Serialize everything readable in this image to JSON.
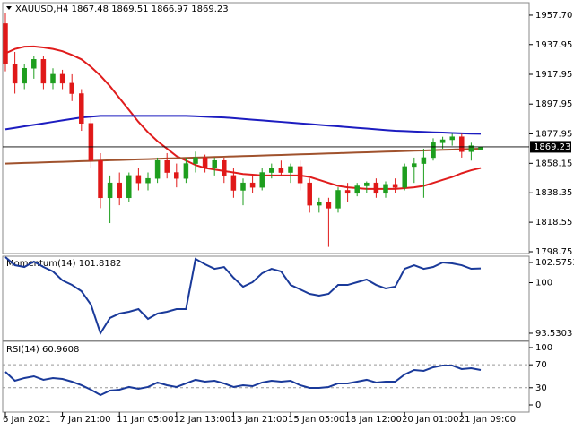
{
  "chart_data": [
    {
      "type": "candlestick",
      "title": "XAUUSD,H4",
      "open": [
        1952,
        1925,
        1912,
        1922,
        1928,
        1912,
        1918,
        1912,
        1905,
        1885,
        1860,
        1835,
        1845,
        1835,
        1850,
        1845,
        1848,
        1860,
        1852,
        1848,
        1858,
        1862,
        1855,
        1860,
        1850,
        1840,
        1845,
        1842,
        1852,
        1855,
        1852,
        1856,
        1845,
        1830,
        1832,
        1828,
        1840,
        1838,
        1843,
        1845,
        1838,
        1844,
        1842,
        1856,
        1858,
        1862,
        1872,
        1874,
        1876,
        1866,
        1867.48
      ],
      "high": [
        1959,
        1933,
        1925,
        1930,
        1930,
        1922,
        1921,
        1918,
        1908,
        1890,
        1865,
        1850,
        1852,
        1852,
        1855,
        1852,
        1862,
        1865,
        1858,
        1862,
        1866,
        1864,
        1862,
        1862,
        1855,
        1848,
        1850,
        1855,
        1858,
        1860,
        1858,
        1860,
        1848,
        1835,
        1835,
        1842,
        1845,
        1845,
        1846,
        1848,
        1846,
        1848,
        1858,
        1862,
        1868,
        1875,
        1876,
        1878,
        1878,
        1872,
        1869.51
      ],
      "low": [
        1920,
        1905,
        1908,
        1915,
        1908,
        1908,
        1908,
        1900,
        1880,
        1855,
        1828,
        1818,
        1830,
        1832,
        1840,
        1840,
        1845,
        1848,
        1842,
        1845,
        1852,
        1852,
        1850,
        1845,
        1835,
        1830,
        1838,
        1840,
        1848,
        1850,
        1845,
        1840,
        1825,
        1825,
        1802,
        1825,
        1832,
        1836,
        1838,
        1835,
        1835,
        1838,
        1840,
        1845,
        1835,
        1860,
        1868,
        1870,
        1862,
        1860,
        1866.97
      ],
      "close": [
        1925,
        1912,
        1922,
        1928,
        1912,
        1918,
        1912,
        1905,
        1885,
        1860,
        1835,
        1845,
        1835,
        1850,
        1845,
        1848,
        1860,
        1852,
        1848,
        1858,
        1862,
        1855,
        1860,
        1850,
        1840,
        1845,
        1842,
        1852,
        1855,
        1852,
        1856,
        1845,
        1830,
        1832,
        1828,
        1840,
        1838,
        1843,
        1845,
        1838,
        1844,
        1842,
        1856,
        1858,
        1862,
        1872,
        1874,
        1876,
        1866,
        1870,
        1869.23
      ],
      "up_color": "#1e9e1e",
      "down_color": "#e01818",
      "series": [
        {
          "color": "#e01c1c",
          "values": [
            1932,
            1935,
            1936.5,
            1936.7,
            1936,
            1935,
            1933.5,
            1931,
            1928,
            1923,
            1917,
            1910,
            1902,
            1894,
            1886,
            1879,
            1873,
            1868,
            1863,
            1860,
            1857,
            1855,
            1854,
            1853,
            1852,
            1851,
            1850.5,
            1850,
            1850,
            1850,
            1850,
            1850,
            1849,
            1847,
            1845,
            1843,
            1842,
            1841.5,
            1841,
            1841,
            1841,
            1841,
            1841.5,
            1842,
            1843,
            1845,
            1847,
            1849,
            1851.5,
            1853.5,
            1855
          ]
        },
        {
          "color": "#1c1cc0",
          "values": [
            1881,
            1882,
            1883,
            1884,
            1885,
            1886,
            1887,
            1888,
            1889,
            1889.5,
            1890,
            1890,
            1890,
            1890,
            1890,
            1890,
            1890,
            1890,
            1890,
            1890,
            1889.8,
            1889.5,
            1889.2,
            1889,
            1888.5,
            1888,
            1887.5,
            1887,
            1886.5,
            1886,
            1885.5,
            1885,
            1884.5,
            1884,
            1883.5,
            1883,
            1882.5,
            1882,
            1881.5,
            1881,
            1880.5,
            1880,
            1879.8,
            1879.5,
            1879.3,
            1879,
            1878.8,
            1878.5,
            1878.3,
            1878.1,
            1878
          ]
        },
        {
          "color": "#a0522d",
          "values": [
            1858,
            1858.2,
            1858.4,
            1858.6,
            1858.8,
            1859,
            1859.2,
            1859.4,
            1859.6,
            1859.8,
            1860,
            1860.2,
            1860.4,
            1860.6,
            1860.8,
            1861,
            1861.2,
            1861.4,
            1861.6,
            1861.8,
            1862,
            1862.2,
            1862.4,
            1862.6,
            1862.8,
            1863,
            1863.2,
            1863.4,
            1863.6,
            1863.8,
            1864,
            1864.2,
            1864.4,
            1864.6,
            1864.8,
            1865,
            1865.2,
            1865.4,
            1865.6,
            1865.8,
            1866,
            1866.2,
            1866.4,
            1866.6,
            1866.8,
            1867,
            1867.2,
            1867.4,
            1867.6,
            1867.8,
            1868
          ]
        }
      ],
      "ylim": [
        1797.55,
        1966.1
      ],
      "yticks": [
        {
          "value": 1957.7,
          "label": "1957.70"
        },
        1937.95,
        1917.95,
        1897.95,
        1877.95,
        {
          "value": 1858.15,
          "label": "1858.15"
        },
        1838.35,
        1818.55,
        1798.75
      ],
      "xticks": [
        {
          "value": 0,
          "label": "6 Jan 2021"
        },
        {
          "value": 6,
          "label": "7 Jan 21:00"
        },
        {
          "value": 12,
          "label": "11 Jan 05:00"
        },
        {
          "value": 18,
          "label": "12 Jan 13:00"
        },
        {
          "value": 24,
          "label": "13 Jan 21:00"
        },
        {
          "value": 30,
          "label": "15 Jan 05:00"
        },
        {
          "value": 36,
          "label": "18 Jan 12:00"
        },
        {
          "value": 42,
          "label": "20 Jan 01:00"
        },
        {
          "value": 48,
          "label": "21 Jan 09:00"
        }
      ]
    },
    {
      "type": "line",
      "title": "Momentum(14)",
      "color": "#1a3a9a",
      "values": [
        103.26,
        102.23,
        102.0,
        102.69,
        102.0,
        101.43,
        100.29,
        99.71,
        98.91,
        97.19,
        93.53,
        95.48,
        96.05,
        96.28,
        96.62,
        95.36,
        96.05,
        96.28,
        96.62,
        96.62,
        103.03,
        102.35,
        101.77,
        102.0,
        100.63,
        99.48,
        100.06,
        101.2,
        101.77,
        101.43,
        99.71,
        99.14,
        98.57,
        98.34,
        98.57,
        99.71,
        99.71,
        100.06,
        100.4,
        99.71,
        99.26,
        99.48,
        101.77,
        102.23,
        101.77,
        102.0,
        102.58,
        102.46,
        102.23,
        101.77,
        101.8182
      ],
      "ylim": [
        92.61,
        103.38
      ],
      "yticks": [
        102.5753,
        100,
        93.5303
      ]
    },
    {
      "type": "line",
      "title": "RSI(14)",
      "color": "#1a3a9a",
      "values": [
        57.8,
        42.2,
        46.9,
        50,
        43.8,
        46.9,
        45.3,
        40.6,
        34.4,
        26.6,
        17.2,
        25,
        26.6,
        31.3,
        28.1,
        31.3,
        39.1,
        34.4,
        31.3,
        37.5,
        43.8,
        40.6,
        42.2,
        37.5,
        31.3,
        34.4,
        32.8,
        39.1,
        42.2,
        40.6,
        42.2,
        34.4,
        29.7,
        29.7,
        31.3,
        37.5,
        37.5,
        40.6,
        43.8,
        39.1,
        40.6,
        40.6,
        53.1,
        60.9,
        59.4,
        65.6,
        68.8,
        68.8,
        62.5,
        64.1,
        60.9608
      ],
      "ylim": [
        -12.5,
        110.9
      ],
      "yticks": [
        100,
        70,
        30,
        0
      ],
      "levels": [
        70,
        30
      ]
    }
  ]
}
